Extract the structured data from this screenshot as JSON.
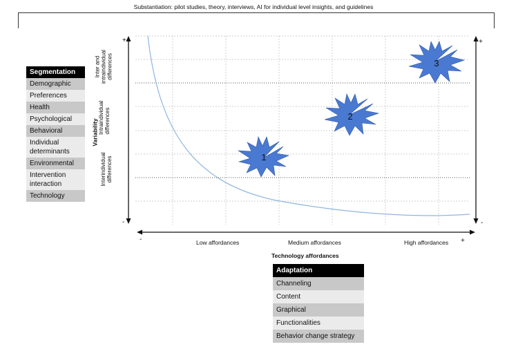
{
  "title": "Substantiation: pilot studies, theory, interviews, AI for individual level insights, and guidelines",
  "segmentation": {
    "header": "Segmentation",
    "items": [
      "Demographic",
      "Preferences",
      "Health",
      "Psychological",
      "Behavioral",
      "Individual determinants",
      "Environmental",
      "Intervention interaction",
      "Technology"
    ]
  },
  "adaptation": {
    "header": "Adaptation",
    "items": [
      "Channeling",
      "Content",
      "Graphical",
      "Functionalities",
      "Behavior change strategy"
    ]
  },
  "y_axis": {
    "title": "Variability",
    "bands": [
      "Inter and intraindividual differences",
      "Intraindividual differences",
      "Interindividual differences"
    ],
    "plus": "+",
    "minus": "-"
  },
  "x_axis": {
    "title": "Technology affordances",
    "labels": [
      "Low affordances",
      "Medium affordances",
      "High affordances"
    ],
    "minus": "-",
    "plus": "+"
  },
  "stars": [
    "1",
    "2",
    "3"
  ],
  "colors": {
    "star": "#4a79d1",
    "curve": "#8fb5e0",
    "grid": "#c8c8c8"
  }
}
